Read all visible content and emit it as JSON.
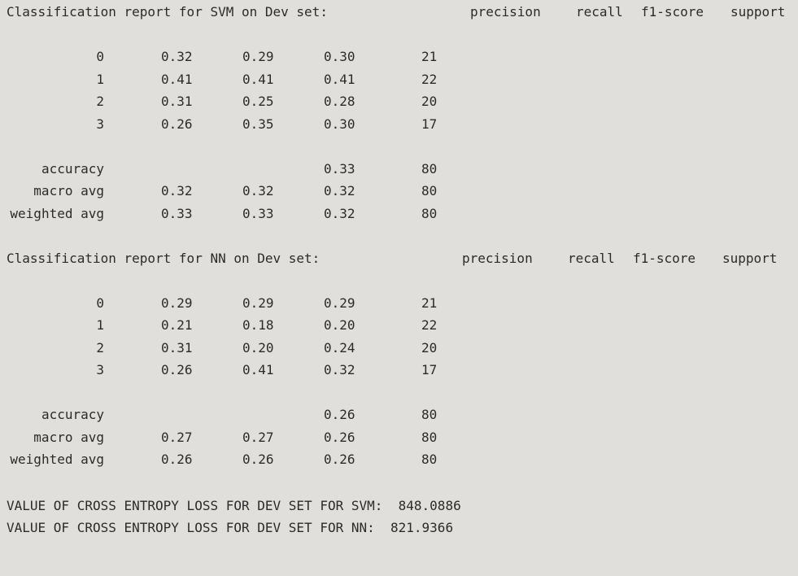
{
  "svm_report": {
    "title": "Classification report for SVM on Dev set:",
    "headers": [
      "precision",
      "recall",
      "f1-score",
      "support"
    ],
    "rows": [
      {
        "label": "0",
        "precision": "0.32",
        "recall": "0.29",
        "f1": "0.30",
        "support": "21"
      },
      {
        "label": "1",
        "precision": "0.41",
        "recall": "0.41",
        "f1": "0.41",
        "support": "22"
      },
      {
        "label": "2",
        "precision": "0.31",
        "recall": "0.25",
        "f1": "0.28",
        "support": "20"
      },
      {
        "label": "3",
        "precision": "0.26",
        "recall": "0.35",
        "f1": "0.30",
        "support": "17"
      }
    ],
    "accuracy": {
      "label": "accuracy",
      "f1": "0.33",
      "support": "80"
    },
    "macro": {
      "label": "macro avg",
      "precision": "0.32",
      "recall": "0.32",
      "f1": "0.32",
      "support": "80"
    },
    "weighted": {
      "label": "weighted avg",
      "precision": "0.33",
      "recall": "0.33",
      "f1": "0.32",
      "support": "80"
    }
  },
  "nn_report": {
    "title": "Classification report for NN on Dev set:",
    "headers": [
      "precision",
      "recall",
      "f1-score",
      "support"
    ],
    "rows": [
      {
        "label": "0",
        "precision": "0.29",
        "recall": "0.29",
        "f1": "0.29",
        "support": "21"
      },
      {
        "label": "1",
        "precision": "0.21",
        "recall": "0.18",
        "f1": "0.20",
        "support": "22"
      },
      {
        "label": "2",
        "precision": "0.31",
        "recall": "0.20",
        "f1": "0.24",
        "support": "20"
      },
      {
        "label": "3",
        "precision": "0.26",
        "recall": "0.41",
        "f1": "0.32",
        "support": "17"
      }
    ],
    "accuracy": {
      "label": "accuracy",
      "f1": "0.26",
      "support": "80"
    },
    "macro": {
      "label": "macro avg",
      "precision": "0.27",
      "recall": "0.27",
      "f1": "0.26",
      "support": "80"
    },
    "weighted": {
      "label": "weighted avg",
      "precision": "0.26",
      "recall": "0.26",
      "f1": "0.26",
      "support": "80"
    }
  },
  "loss": {
    "svm_line": "VALUE OF CROSS ENTROPY LOSS FOR DEV SET FOR SVM:  848.0886",
    "nn_line": "VALUE OF CROSS ENTROPY LOSS FOR DEV SET FOR NN:  821.9366"
  },
  "colors": {
    "background": "#e1dfdb",
    "text": "#2b2b2b"
  }
}
